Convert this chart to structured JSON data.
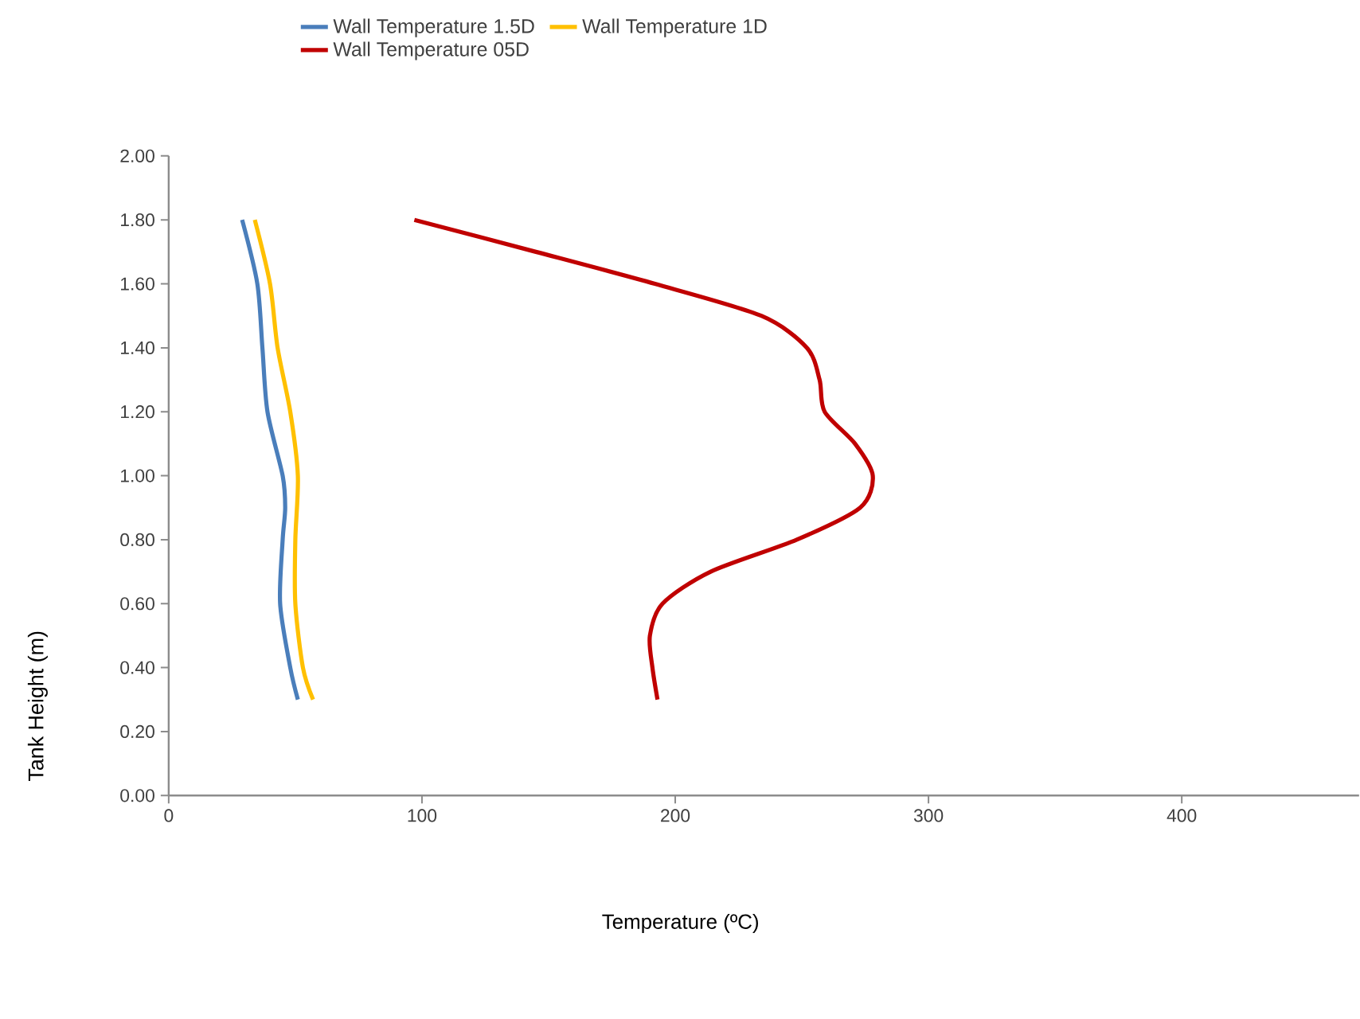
{
  "chart_data": {
    "type": "line",
    "xlabel": "Temperature (ºC)",
    "ylabel": "Tank Height (m)",
    "xlim": [
      0,
      470
    ],
    "xticks": [
      0,
      100,
      200,
      300,
      400
    ],
    "ylim": [
      0,
      2
    ],
    "yticks": [
      {
        "value": 0,
        "label": "0.00"
      },
      {
        "value": 0.2,
        "label": "0.20"
      },
      {
        "value": 0.4,
        "label": "0.40"
      },
      {
        "value": 0.6,
        "label": "0.60"
      },
      {
        "value": 0.8,
        "label": "0.80"
      },
      {
        "value": 1.0,
        "label": "1.00"
      },
      {
        "value": 1.2,
        "label": "1.20"
      },
      {
        "value": 1.4,
        "label": "1.40"
      },
      {
        "value": 1.6,
        "label": "1.60"
      },
      {
        "value": 1.8,
        "label": "1.80"
      },
      {
        "value": 2.0,
        "label": "2.00"
      }
    ],
    "grid": false,
    "legend": "top",
    "marker": "none",
    "line_style": "solid",
    "series": [
      {
        "name": "Wall Temperature 1.5D",
        "color": "#4a7ebb",
        "x": [
          29,
          35,
          37,
          39,
          45,
          46,
          45,
          44,
          48,
          51
        ],
        "values": [
          1.8,
          1.6,
          1.4,
          1.2,
          1.0,
          0.9,
          0.8,
          0.6,
          0.4,
          0.3
        ]
      },
      {
        "name": "Wall Temperature 1D",
        "color": "#ffc000",
        "x": [
          34,
          40,
          43,
          48,
          51,
          50,
          50,
          53,
          57
        ],
        "values": [
          1.8,
          1.6,
          1.4,
          1.2,
          1.0,
          0.8,
          0.6,
          0.4,
          0.3
        ]
      },
      {
        "name": "Wall Temperature 05D",
        "color": "#c00000",
        "x": [
          97,
          145,
          192,
          234,
          252,
          257,
          259,
          271,
          278,
          273,
          248,
          214,
          195,
          190,
          191,
          193
        ],
        "values": [
          1.8,
          1.7,
          1.6,
          1.5,
          1.4,
          1.3,
          1.2,
          1.1,
          1.0,
          0.9,
          0.8,
          0.7,
          0.6,
          0.5,
          0.4,
          0.3
        ]
      }
    ]
  }
}
